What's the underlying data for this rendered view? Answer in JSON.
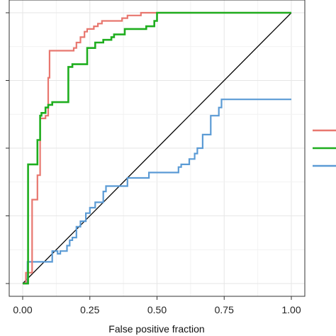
{
  "chart_data": {
    "type": "line",
    "title": "",
    "xlabel": "False positive fraction",
    "ylabel": "",
    "xlim": [
      0,
      1
    ],
    "ylim": [
      0,
      1
    ],
    "x_ticks": [
      "0.00",
      "0.25",
      "0.50",
      "0.75",
      "1.00"
    ],
    "grid": true,
    "legend": "right",
    "diagonal": {
      "color": "#000000",
      "x": [
        0,
        1
      ],
      "y": [
        0,
        1
      ]
    },
    "series": [
      {
        "color": "#e8776f",
        "x": [
          0,
          0.012,
          0.012,
          0.035,
          0.035,
          0.055,
          0.055,
          0.065,
          0.065,
          0.085,
          0.085,
          0.095,
          0.095,
          0.1,
          0.1,
          0.12,
          0.12,
          0.19,
          0.19,
          0.2,
          0.2,
          0.215,
          0.215,
          0.23,
          0.23,
          0.24,
          0.24,
          0.265,
          0.265,
          0.28,
          0.28,
          0.295,
          0.295,
          0.345,
          0.345,
          0.37,
          0.37,
          0.39,
          0.39,
          0.4,
          0.4,
          0.44,
          0.44,
          0.45,
          0.45,
          1.0
        ],
        "y": [
          0,
          0,
          0.04,
          0.04,
          0.31,
          0.31,
          0.4,
          0.4,
          0.61,
          0.61,
          0.62,
          0.62,
          0.76,
          0.76,
          0.86,
          0.86,
          0.86,
          0.86,
          0.87,
          0.87,
          0.89,
          0.89,
          0.91,
          0.91,
          0.93,
          0.93,
          0.94,
          0.94,
          0.95,
          0.95,
          0.96,
          0.96,
          0.97,
          0.97,
          0.97,
          0.97,
          0.98,
          0.98,
          0.99,
          0.99,
          0.99,
          0.99,
          1.0,
          1.0,
          1.0,
          1.0
        ]
      },
      {
        "color": "#1fae1f",
        "x": [
          0,
          0.02,
          0.02,
          0.055,
          0.055,
          0.065,
          0.065,
          0.07,
          0.07,
          0.085,
          0.085,
          0.095,
          0.095,
          0.11,
          0.11,
          0.17,
          0.17,
          0.185,
          0.185,
          0.24,
          0.24,
          0.27,
          0.27,
          0.3,
          0.3,
          0.33,
          0.33,
          0.34,
          0.34,
          0.38,
          0.38,
          0.46,
          0.46,
          0.49,
          0.49,
          0.5,
          0.5,
          1.0
        ],
        "y": [
          0,
          0,
          0.44,
          0.44,
          0.53,
          0.53,
          0.62,
          0.62,
          0.63,
          0.63,
          0.65,
          0.65,
          0.66,
          0.66,
          0.67,
          0.67,
          0.8,
          0.8,
          0.81,
          0.81,
          0.87,
          0.87,
          0.89,
          0.89,
          0.9,
          0.9,
          0.91,
          0.91,
          0.92,
          0.92,
          0.94,
          0.94,
          0.95,
          0.95,
          0.97,
          0.97,
          1.0,
          1.0
        ]
      },
      {
        "color": "#5b9bd5",
        "x": [
          0,
          0.018,
          0.018,
          0.03,
          0.03,
          0.05,
          0.05,
          0.065,
          0.065,
          0.08,
          0.08,
          0.095,
          0.095,
          0.11,
          0.11,
          0.13,
          0.13,
          0.14,
          0.14,
          0.165,
          0.165,
          0.175,
          0.175,
          0.185,
          0.185,
          0.2,
          0.2,
          0.215,
          0.215,
          0.235,
          0.235,
          0.25,
          0.25,
          0.27,
          0.27,
          0.3,
          0.3,
          0.31,
          0.31,
          0.39,
          0.39,
          0.47,
          0.47,
          0.58,
          0.58,
          0.59,
          0.59,
          0.62,
          0.62,
          0.64,
          0.64,
          0.65,
          0.65,
          0.67,
          0.67,
          0.7,
          0.7,
          0.73,
          0.73,
          0.74,
          0.74,
          1.0
        ],
        "y": [
          0,
          0,
          0.08,
          0.08,
          0.08,
          0.08,
          0.08,
          0.08,
          0.08,
          0.08,
          0.08,
          0.08,
          0.08,
          0.08,
          0.12,
          0.12,
          0.11,
          0.11,
          0.12,
          0.12,
          0.14,
          0.14,
          0.16,
          0.16,
          0.17,
          0.17,
          0.21,
          0.21,
          0.23,
          0.23,
          0.26,
          0.26,
          0.28,
          0.28,
          0.3,
          0.3,
          0.34,
          0.34,
          0.36,
          0.36,
          0.39,
          0.39,
          0.41,
          0.41,
          0.43,
          0.43,
          0.44,
          0.44,
          0.46,
          0.46,
          0.48,
          0.48,
          0.5,
          0.5,
          0.55,
          0.55,
          0.62,
          0.62,
          0.65,
          0.65,
          0.68,
          0.68
        ]
      }
    ]
  }
}
